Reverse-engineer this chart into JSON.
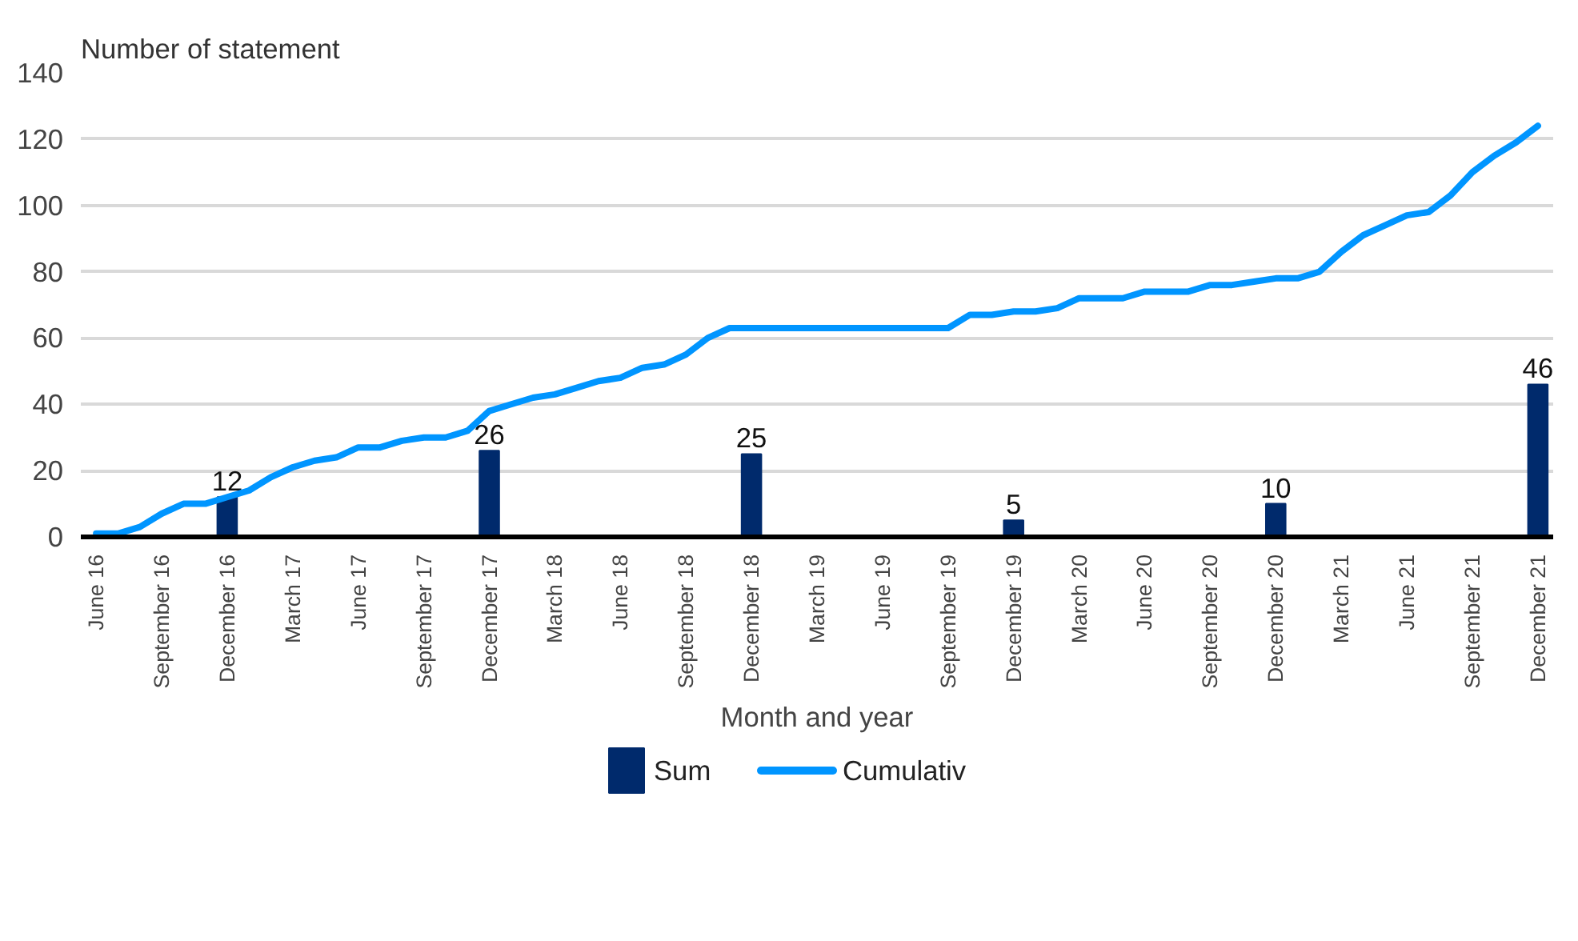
{
  "chart_data": {
    "type": "bar",
    "ylabel": "Number of statement",
    "xlabel": "Month and year",
    "categories": [
      "June 16",
      null,
      null,
      "September 16",
      null,
      null,
      "December 16",
      null,
      null,
      "March 17",
      null,
      null,
      "June 17",
      null,
      null,
      "September 17",
      null,
      null,
      "December 17",
      null,
      null,
      "March 18",
      null,
      null,
      "June 18",
      null,
      null,
      "September 18",
      null,
      null,
      "December 18",
      null,
      null,
      "March 19",
      null,
      null,
      "June 19",
      null,
      null,
      "September 19",
      null,
      null,
      "December 19",
      null,
      null,
      "March 20",
      null,
      null,
      "June 20",
      null,
      null,
      "September 20",
      null,
      null,
      "December 20",
      null,
      null,
      "March 21",
      null,
      null,
      "June 21",
      null,
      null,
      "September 21",
      null,
      null,
      "December 21"
    ],
    "series": [
      {
        "name": "Sum",
        "color": "#002a6c",
        "values": [
          null,
          null,
          null,
          null,
          null,
          null,
          12,
          null,
          null,
          null,
          null,
          null,
          null,
          null,
          null,
          null,
          null,
          null,
          26,
          null,
          null,
          null,
          null,
          null,
          null,
          null,
          null,
          null,
          null,
          null,
          25,
          null,
          null,
          null,
          null,
          null,
          null,
          null,
          null,
          null,
          null,
          null,
          5,
          null,
          null,
          null,
          null,
          null,
          null,
          null,
          null,
          null,
          null,
          null,
          10,
          null,
          null,
          null,
          null,
          null,
          null,
          null,
          null,
          null,
          null,
          null,
          46
        ],
        "value_labels": [
          null,
          null,
          null,
          null,
          null,
          null,
          "12",
          null,
          null,
          null,
          null,
          null,
          null,
          null,
          null,
          null,
          null,
          null,
          "26",
          null,
          null,
          null,
          null,
          null,
          null,
          null,
          null,
          null,
          null,
          null,
          "25",
          null,
          null,
          null,
          null,
          null,
          null,
          null,
          null,
          null,
          null,
          null,
          "5",
          null,
          null,
          null,
          null,
          null,
          null,
          null,
          null,
          null,
          null,
          null,
          "10",
          null,
          null,
          null,
          null,
          null,
          null,
          null,
          null,
          null,
          null,
          null,
          "46"
        ]
      },
      {
        "name": "Cumulativ",
        "type": "line",
        "color": "#0095ff",
        "values": [
          1,
          1,
          3,
          7,
          10,
          10,
          12,
          14,
          18,
          21,
          23,
          24,
          27,
          27,
          29,
          30,
          30,
          32,
          38,
          40,
          42,
          43,
          45,
          47,
          48,
          51,
          52,
          55,
          60,
          63,
          63,
          63,
          63,
          63,
          63,
          63,
          63,
          63,
          63,
          63,
          67,
          67,
          68,
          68,
          69,
          72,
          72,
          72,
          74,
          74,
          74,
          76,
          76,
          77,
          78,
          78,
          80,
          86,
          91,
          94,
          97,
          98,
          103,
          110,
          115,
          119,
          124
        ]
      }
    ],
    "ylim": [
      0,
      140
    ],
    "yticks": [
      0,
      20,
      40,
      60,
      80,
      100,
      120,
      140
    ],
    "grid": "y",
    "legend": "bottom"
  }
}
